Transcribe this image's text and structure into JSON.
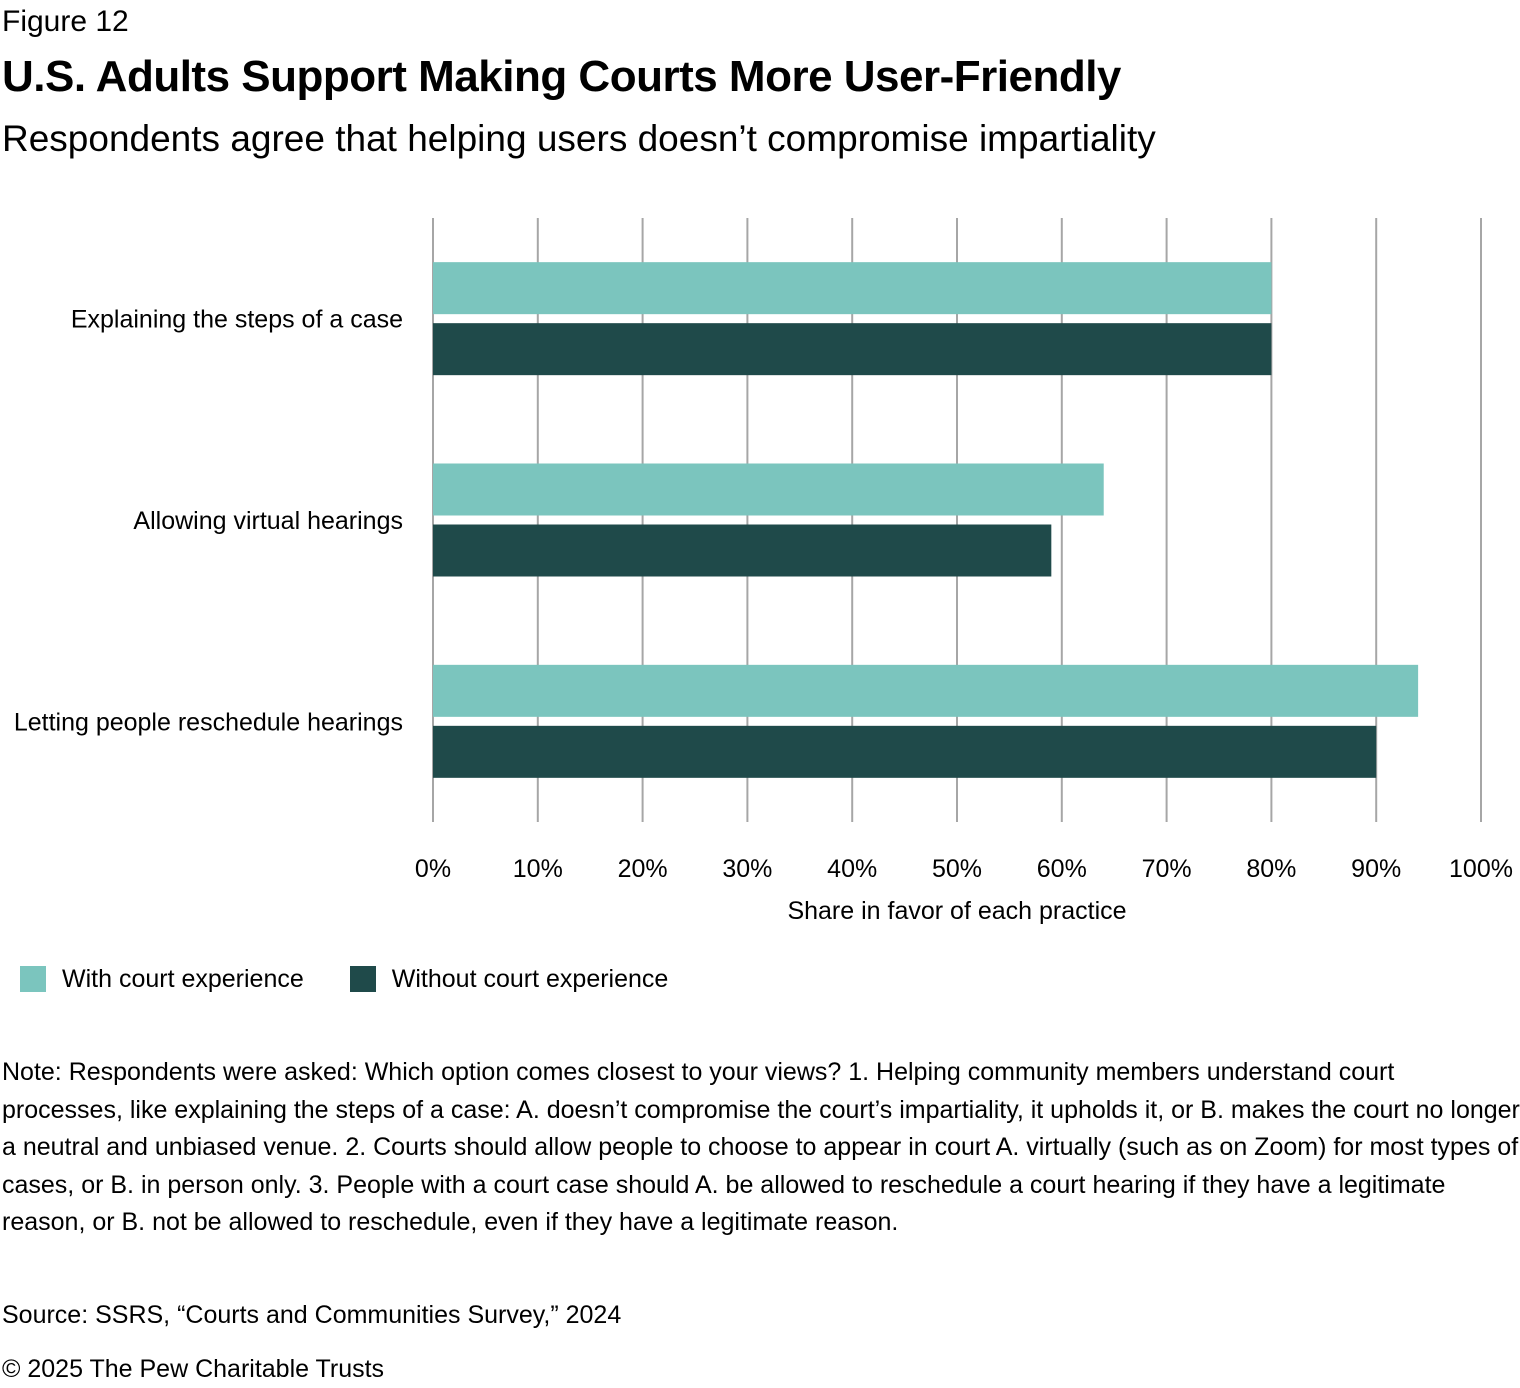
{
  "figure_label": "Figure 12",
  "title": "U.S. Adults Support Making Courts More User-Friendly",
  "subtitle": "Respondents agree that helping users doesn’t compromise impartiality",
  "legend": [
    {
      "label": "With court experience",
      "color": "#7BC5BE"
    },
    {
      "label": "Without court experience",
      "color": "#1F4A4A"
    }
  ],
  "note": "Note: Respondents were asked: Which option comes closest to your views? 1. Helping community members understand court processes, like explaining the steps of a case: A. doesn’t compromise the court’s impartiality, it upholds it, or B. makes the court no longer a neutral and unbiased venue. 2. Courts should allow people to choose to appear in court A. virtually (such as on Zoom) for most types of cases, or B. in person only. 3. People with a court case should A. be allowed to reschedule a court hearing if they have a legitimate reason, or B. not be allowed to reschedule, even if they have a legitimate reason.",
  "source": "Source: SSRS, “Courts and Communities Survey,” 2024",
  "copyright": "© 2025 The Pew Charitable Trusts",
  "chart_data": {
    "type": "bar",
    "orientation": "horizontal",
    "categories": [
      "Explaining the steps of a case",
      "Allowing virtual hearings",
      "Letting people reschedule hearings"
    ],
    "series": [
      {
        "name": "With court experience",
        "color": "#7BC5BE",
        "values": [
          80,
          64,
          94
        ]
      },
      {
        "name": "Without court experience",
        "color": "#1F4A4A",
        "values": [
          80,
          59,
          90
        ]
      }
    ],
    "xlabel": "Share in favor of each practice",
    "xlim": [
      0,
      100
    ],
    "xticks": [
      "0%",
      "10%",
      "20%",
      "30%",
      "40%",
      "50%",
      "60%",
      "70%",
      "80%",
      "90%",
      "100%"
    ],
    "grid": true,
    "legend_position": "bottom-left",
    "gridline_color": "#a6a6a6"
  }
}
